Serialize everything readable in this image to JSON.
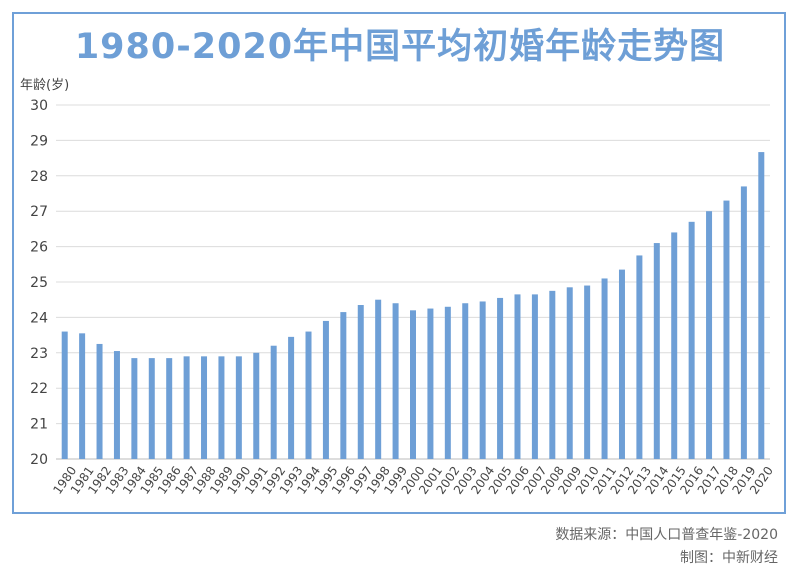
{
  "header": {
    "title": "1980-2020年中国平均初婚年龄走势图"
  },
  "footer": {
    "source": "数据来源：中国人口普查年鉴-2020",
    "credit": "制图：中新财经"
  },
  "colors": {
    "bar": "#6e9fd6",
    "title": "#6e9fd6",
    "frame": "#6fa0d8",
    "grid": "#dcdcdc"
  },
  "chart_data": {
    "type": "bar",
    "title": "1980-2020年中国平均初婚年龄走势图",
    "xlabel": "",
    "ylabel": "年龄(岁)",
    "ylim": [
      20,
      30
    ],
    "yticks": [
      20,
      21,
      22,
      23,
      24,
      25,
      26,
      27,
      28,
      29,
      30
    ],
    "grid": true,
    "categories": [
      "1980",
      "1981",
      "1982",
      "1983",
      "1984",
      "1985",
      "1986",
      "1987",
      "1988",
      "1989",
      "1990",
      "1991",
      "1992",
      "1993",
      "1994",
      "1995",
      "1996",
      "1997",
      "1998",
      "1999",
      "2000",
      "2001",
      "2002",
      "2003",
      "2004",
      "2005",
      "2006",
      "2007",
      "2008",
      "2009",
      "2010",
      "2011",
      "2012",
      "2013",
      "2014",
      "2015",
      "2016",
      "2017",
      "2018",
      "2019",
      "2020"
    ],
    "values": [
      23.6,
      23.55,
      23.25,
      23.05,
      22.85,
      22.85,
      22.85,
      22.9,
      22.9,
      22.9,
      22.9,
      23.0,
      23.2,
      23.45,
      23.6,
      23.9,
      24.15,
      24.35,
      24.5,
      24.4,
      24.2,
      24.25,
      24.3,
      24.4,
      24.45,
      24.55,
      24.65,
      24.65,
      24.75,
      24.85,
      24.9,
      25.1,
      25.35,
      25.75,
      26.1,
      26.4,
      26.7,
      27.0,
      27.3,
      27.7,
      28.67
    ]
  }
}
